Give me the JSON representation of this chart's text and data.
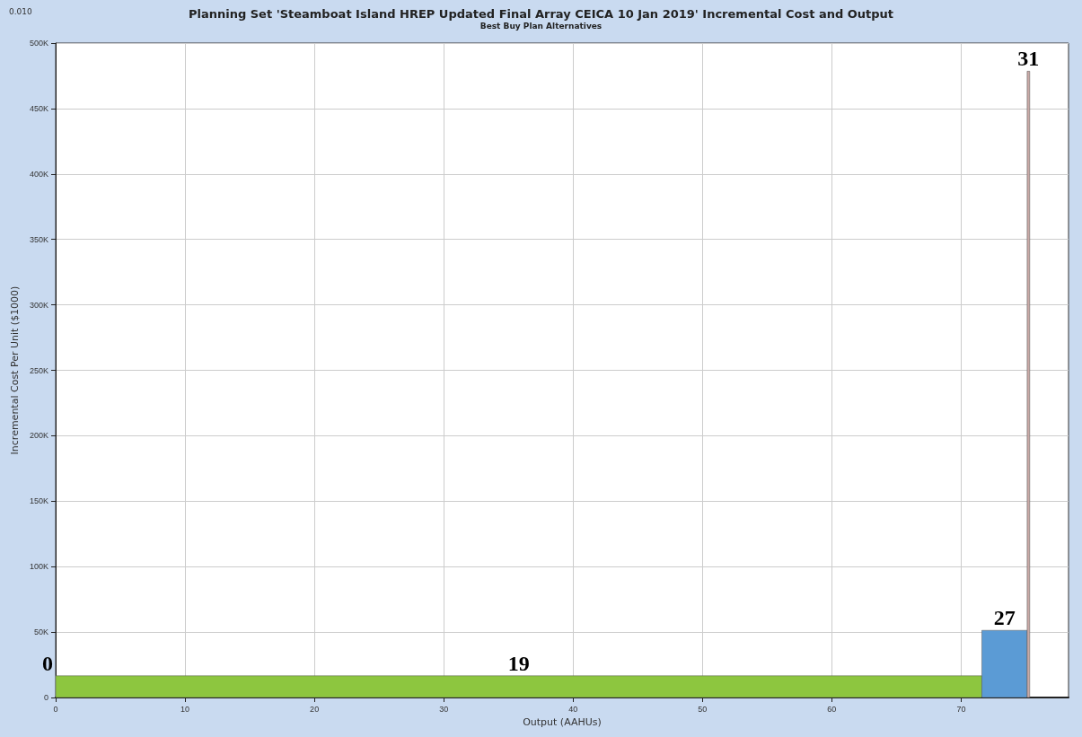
{
  "chart_data": {
    "type": "histogram",
    "title": "Planning Set 'Steamboat Island HREP Updated Final Array CEICA 10 Jan 2019' Incremental Cost and Output",
    "subtitle": "Best Buy Plan Alternatives",
    "xlabel": "Output (AAHUs)",
    "ylabel": "Incremental Cost Per Unit ($1000)",
    "bins": [
      0,
      71.6,
      75.1,
      75.3
    ],
    "values": [
      16600,
      51300,
      478500
    ],
    "colors": [
      "#8dc63f",
      "#5b9bd5",
      "#c9a9a6"
    ],
    "xlim": [
      0,
      78.3
    ],
    "xticks": [
      0,
      10,
      20,
      30,
      40,
      50,
      60,
      70
    ],
    "ylim": [
      0,
      500000
    ],
    "yticks": [
      0,
      {
        "value": 50000,
        "label": "50K"
      },
      {
        "value": 100000,
        "label": "100K"
      },
      {
        "value": 150000,
        "label": "150K"
      },
      {
        "value": 200000,
        "label": "200K"
      },
      {
        "value": 250000,
        "label": "250K"
      },
      {
        "value": 300000,
        "label": "300K"
      },
      {
        "value": 350000,
        "label": "350K"
      },
      {
        "value": 400000,
        "label": "400K"
      },
      {
        "value": 450000,
        "label": "450K"
      },
      {
        "value": 500000,
        "label": "500K"
      }
    ],
    "grid": true,
    "annotations": [
      "0.010",
      {
        "text": "0",
        "x": 0,
        "y": 16600
      },
      {
        "text": "19",
        "x": 35.8,
        "y": 16600
      },
      {
        "text": "27",
        "x": 73.35,
        "y": 51300
      },
      {
        "text": "31",
        "x": 75.2,
        "y": 478500
      }
    ]
  }
}
